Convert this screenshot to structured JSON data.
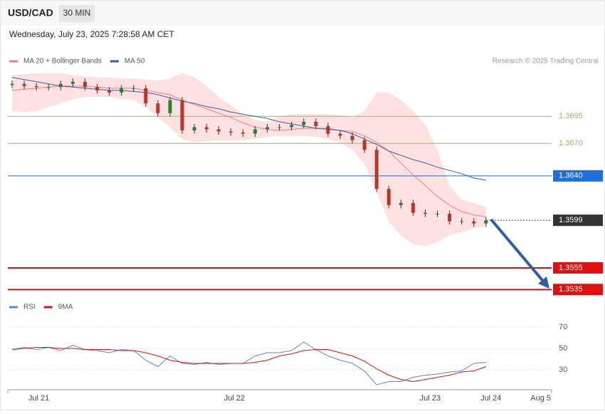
{
  "header": {
    "symbol": "USD/CAD",
    "interval": "30 MIN",
    "timestamp": "Wednesday, July 23, 2025 7:28:58 AM CET"
  },
  "chart_data": [
    {
      "type": "candlestick",
      "credit": "Research © 2025 Trading Central",
      "up_color": "#2e7d32",
      "down_color": "#b23a2a",
      "open": [
        1.3724,
        1.3725,
        1.3723,
        1.3722,
        1.3722,
        1.3725,
        1.3727,
        1.3722,
        1.3719,
        1.3717,
        1.3721,
        1.3721,
        1.3707,
        1.3698,
        1.371,
        1.3682,
        1.3685,
        1.3683,
        1.3681,
        1.368,
        1.3679,
        1.3683,
        1.3685,
        1.3685,
        1.3687,
        1.369,
        1.3686,
        1.3679,
        1.3677,
        1.3673,
        1.3664,
        1.3628,
        1.3613,
        1.3615,
        1.3606,
        1.3605,
        1.3605,
        1.3598,
        1.3598,
        1.3596
      ],
      "high": [
        1.3728,
        1.3728,
        1.3726,
        1.3725,
        1.3728,
        1.373,
        1.373,
        1.3725,
        1.3722,
        1.3724,
        1.3724,
        1.3724,
        1.371,
        1.3713,
        1.3713,
        1.3688,
        1.3688,
        1.3686,
        1.3684,
        1.3683,
        1.3686,
        1.3688,
        1.3688,
        1.369,
        1.3693,
        1.3693,
        1.3689,
        1.3682,
        1.368,
        1.3676,
        1.3667,
        1.3631,
        1.3618,
        1.3618,
        1.3609,
        1.3608,
        1.3608,
        1.3601,
        1.3601,
        1.3602
      ],
      "low": [
        1.3721,
        1.372,
        1.3719,
        1.3719,
        1.3719,
        1.3722,
        1.3719,
        1.3716,
        1.3714,
        1.3714,
        1.3718,
        1.3704,
        1.3695,
        1.3695,
        1.3679,
        1.3679,
        1.368,
        1.3678,
        1.3677,
        1.3676,
        1.3676,
        1.368,
        1.3682,
        1.3682,
        1.3684,
        1.3683,
        1.3676,
        1.3674,
        1.367,
        1.3661,
        1.3625,
        1.361,
        1.361,
        1.3603,
        1.3602,
        1.3602,
        1.3595,
        1.3595,
        1.3593,
        1.3593
      ],
      "close": [
        1.3725,
        1.3723,
        1.3722,
        1.3722,
        1.3725,
        1.3727,
        1.3722,
        1.3719,
        1.3717,
        1.3721,
        1.3721,
        1.3707,
        1.3698,
        1.371,
        1.3682,
        1.3685,
        1.3683,
        1.3681,
        1.368,
        1.3679,
        1.3683,
        1.3685,
        1.3685,
        1.3687,
        1.369,
        1.3686,
        1.3679,
        1.3677,
        1.3673,
        1.3664,
        1.3628,
        1.3613,
        1.3615,
        1.3606,
        1.3605,
        1.3605,
        1.3598,
        1.3598,
        1.3596,
        1.3599
      ],
      "overlays": [
        {
          "name": "MA 20 + Bollinger Bands",
          "color": "#f08080",
          "band_color": "#fde0e0",
          "values": [
            1.3719,
            1.372,
            1.3721,
            1.3722,
            1.3723,
            1.3723,
            1.3723,
            1.3722,
            1.3721,
            1.3721,
            1.3721,
            1.3719,
            1.3717,
            1.3715,
            1.371,
            1.3706,
            1.3702,
            1.3698,
            1.3694,
            1.3689,
            1.3685,
            1.3683,
            1.3682,
            1.3683,
            1.3684,
            1.3684,
            1.3684,
            1.3682,
            1.3681,
            1.3677,
            1.3671,
            1.3663,
            1.3652,
            1.3641,
            1.3631,
            1.3621,
            1.3613,
            1.3607,
            1.3604,
            1.3602
          ],
          "upper": [
            1.3733,
            1.3734,
            1.3735,
            1.3735,
            1.3735,
            1.3733,
            1.3732,
            1.3731,
            1.3731,
            1.373,
            1.373,
            1.3729,
            1.3728,
            1.373,
            1.3735,
            1.3731,
            1.3723,
            1.3713,
            1.3705,
            1.3697,
            1.3692,
            1.369,
            1.3695,
            1.3697,
            1.3697,
            1.3697,
            1.3697,
            1.3696,
            1.3694,
            1.37,
            1.3717,
            1.3717,
            1.371,
            1.37,
            1.3687,
            1.3664,
            1.3631,
            1.3618,
            1.3615,
            1.3611
          ],
          "lower": [
            1.37,
            1.3699,
            1.37,
            1.3704,
            1.3707,
            1.3711,
            1.3713,
            1.3713,
            1.3713,
            1.3711,
            1.371,
            1.3704,
            1.3694,
            1.3685,
            1.3674,
            1.3671,
            1.3672,
            1.3673,
            1.3673,
            1.3673,
            1.3674,
            1.3676,
            1.3677,
            1.3677,
            1.3677,
            1.3676,
            1.3674,
            1.3671,
            1.3664,
            1.3651,
            1.3625,
            1.3598,
            1.3585,
            1.3577,
            1.3575,
            1.3579,
            1.3585,
            1.3588,
            1.3592,
            1.3593
          ]
        },
        {
          "name": "MA 50",
          "color": "#3b5f9a",
          "values": [
            1.3731,
            1.3729,
            1.3727,
            1.3725,
            1.3723,
            1.3722,
            1.3721,
            1.372,
            1.3719,
            1.3719,
            1.3718,
            1.3717,
            1.3715,
            1.3712,
            1.3709,
            1.3707,
            1.3704,
            1.3702,
            1.3699,
            1.3697,
            1.3695,
            1.3693,
            1.369,
            1.3688,
            1.3686,
            1.3684,
            1.3683,
            1.3682,
            1.3679,
            1.3674,
            1.3669,
            1.3663,
            1.3659,
            1.3655,
            1.3652,
            1.3648,
            1.3645,
            1.3642,
            1.3638,
            1.3636
          ]
        }
      ],
      "levels": [
        {
          "value": 1.3695,
          "label": "1.3695",
          "color": "#8bc34a",
          "boxed": false,
          "dashed": false,
          "width": 1
        },
        {
          "value": 1.367,
          "label": "1.3670",
          "color": "#8bc34a",
          "boxed": false,
          "dashed": false,
          "width": 1
        },
        {
          "value": 1.364,
          "label": "1.3640",
          "color": "#1e6fd9",
          "boxed": true,
          "dashed": false,
          "width": 1
        },
        {
          "value": 1.3599,
          "label": "1.3599",
          "color": "#333333",
          "boxed": true,
          "dashed": true,
          "width": 1
        },
        {
          "value": 1.3555,
          "label": "1.3555",
          "color": "#e01010",
          "boxed": true,
          "dashed": false,
          "width": 2
        },
        {
          "value": 1.3535,
          "label": "1.3535",
          "color": "#e01010",
          "boxed": true,
          "dashed": false,
          "width": 2
        }
      ],
      "ylim": [
        1.3526,
        1.3736
      ],
      "xlim": [
        -0.35,
        44.4
      ]
    },
    {
      "type": "line",
      "series": [
        {
          "name": "RSI",
          "color": "#5b86d6",
          "values": [
            49,
            51,
            49,
            51,
            48,
            53,
            49,
            48,
            46,
            49,
            48,
            39,
            33,
            43,
            36,
            35,
            37,
            35,
            36,
            36,
            43,
            46,
            46,
            48,
            56,
            49,
            43,
            39,
            36,
            29,
            16,
            19,
            19,
            23,
            25,
            26,
            28,
            29,
            36,
            37
          ]
        },
        {
          "name": "9MA",
          "color": "#e01010",
          "values": [
            49,
            50,
            51,
            51,
            50,
            50,
            49,
            49,
            49,
            48,
            48,
            46,
            43,
            39,
            37,
            36,
            36,
            36,
            36,
            36,
            37,
            39,
            43,
            45,
            48,
            49,
            49,
            46,
            43,
            38,
            31,
            25,
            21,
            19,
            21,
            23,
            25,
            28,
            29,
            33
          ]
        }
      ],
      "ylim": [
        13,
        80
      ],
      "yticks": [
        30,
        50,
        70
      ],
      "xlim": [
        -0.35,
        44.4
      ],
      "xticks": [
        {
          "value": 2.2,
          "label": "Jul 21"
        },
        {
          "value": 18.3,
          "label": "Jul 22"
        },
        {
          "value": 34.4,
          "label": "Jul 23"
        },
        {
          "value": 39.4,
          "label": "Jul 24"
        },
        {
          "value": 43.5,
          "label": "Aug 5"
        }
      ]
    }
  ]
}
